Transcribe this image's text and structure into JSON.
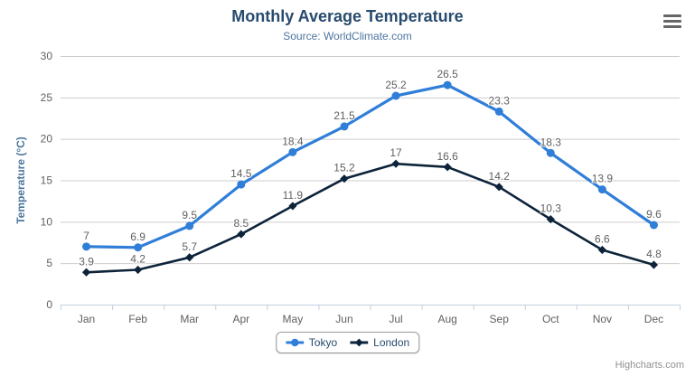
{
  "chart": {
    "title": "Monthly Average Temperature",
    "subtitle": "Source: WorldClimate.com",
    "credits": "Highcharts.com"
  },
  "icons": {
    "context_menu": "hamburger-menu-icon"
  },
  "chart_data": {
    "type": "line",
    "title": "Monthly Average Temperature",
    "subtitle": "Source: WorldClimate.com",
    "categories": [
      "Jan",
      "Feb",
      "Mar",
      "Apr",
      "May",
      "Jun",
      "Jul",
      "Aug",
      "Sep",
      "Oct",
      "Nov",
      "Dec"
    ],
    "series": [
      {
        "name": "Tokyo",
        "color": "#2f7ed8",
        "marker": "circle",
        "line_width": 3.2,
        "values": [
          7.0,
          6.9,
          9.5,
          14.5,
          18.4,
          21.5,
          25.2,
          26.5,
          23.3,
          18.3,
          13.9,
          9.6
        ]
      },
      {
        "name": "London",
        "color": "#0d233a",
        "marker": "diamond",
        "line_width": 2.6,
        "values": [
          3.9,
          4.2,
          5.7,
          8.5,
          11.9,
          15.2,
          17.0,
          16.6,
          14.2,
          10.3,
          6.6,
          4.8
        ]
      }
    ],
    "xlabel": "",
    "ylabel": "Temperature (°C)",
    "ylim": [
      0,
      30
    ],
    "ytick_interval": 5,
    "grid": true,
    "data_labels": true,
    "legend_position": "bottom-center",
    "axis_colors": {
      "grid": "#cccccc",
      "axis_line": "#c0d0e0",
      "labels": "#606060",
      "axis_title": "#4d759e",
      "data_labels": "#606060"
    }
  }
}
